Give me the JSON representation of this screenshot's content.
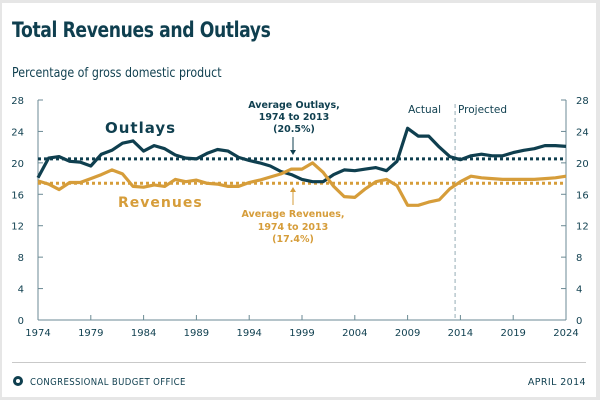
{
  "header": {
    "title": "Total Revenues and Outlays",
    "subtitle": "Percentage of gross domestic product"
  },
  "footer": {
    "agency": "CONGRESSIONAL BUDGET OFFICE",
    "date": "APRIL 2014"
  },
  "colors": {
    "outlays": "#0f3f4f",
    "revenues": "#d69d3a",
    "axis": "#6b8a94",
    "divider": "#b8c8ce"
  },
  "chart_data": {
    "type": "line",
    "title": "Total Revenues and Outlays",
    "subtitle": "Percentage of gross domestic product",
    "xlabel": "",
    "ylabel": "Percentage of gross domestic product",
    "xlim": [
      1974,
      2024
    ],
    "ylim": [
      0,
      28
    ],
    "x_ticks": [
      1974,
      1979,
      1984,
      1989,
      1994,
      1999,
      2004,
      2009,
      2014,
      2019,
      2024
    ],
    "y_ticks": [
      0,
      4,
      8,
      12,
      16,
      20,
      24,
      28
    ],
    "grid": false,
    "x": [
      1974,
      1975,
      1976,
      1977,
      1978,
      1979,
      1980,
      1981,
      1982,
      1983,
      1984,
      1985,
      1986,
      1987,
      1988,
      1989,
      1990,
      1991,
      1992,
      1993,
      1994,
      1995,
      1996,
      1997,
      1998,
      1999,
      2000,
      2001,
      2002,
      2003,
      2004,
      2005,
      2006,
      2007,
      2008,
      2009,
      2010,
      2011,
      2012,
      2013,
      2014,
      2015,
      2016,
      2017,
      2018,
      2019,
      2020,
      2021,
      2022,
      2023,
      2024
    ],
    "series": [
      {
        "name": "Outlays",
        "label": "Outlays",
        "values": [
          18.1,
          20.6,
          20.8,
          20.2,
          20.1,
          19.6,
          21.1,
          21.6,
          22.5,
          22.8,
          21.5,
          22.2,
          21.8,
          21.0,
          20.6,
          20.5,
          21.2,
          21.7,
          21.5,
          20.7,
          20.3,
          20.0,
          19.6,
          18.9,
          18.5,
          17.9,
          17.6,
          17.6,
          18.5,
          19.1,
          19.0,
          19.2,
          19.4,
          19.0,
          20.2,
          24.4,
          23.4,
          23.4,
          22.0,
          20.8,
          20.4,
          20.9,
          21.1,
          20.9,
          20.9,
          21.3,
          21.6,
          21.8,
          22.2,
          22.2,
          22.1
        ]
      },
      {
        "name": "Revenues",
        "label": "Revenues",
        "values": [
          17.7,
          17.3,
          16.6,
          17.5,
          17.5,
          18.0,
          18.5,
          19.1,
          18.6,
          17.0,
          16.9,
          17.2,
          17.0,
          17.9,
          17.6,
          17.8,
          17.4,
          17.3,
          17.0,
          17.0,
          17.5,
          17.8,
          18.2,
          18.6,
          19.2,
          19.2,
          20.0,
          18.8,
          17.0,
          15.7,
          15.6,
          16.7,
          17.6,
          17.9,
          17.1,
          14.6,
          14.6,
          15.0,
          15.3,
          16.7,
          17.6,
          18.3,
          18.1,
          18.0,
          17.9,
          17.9,
          17.9,
          17.9,
          18.0,
          18.1,
          18.3
        ]
      }
    ],
    "reference_lines": [
      {
        "name": "Average Outlays",
        "value": 20.5,
        "label_lines": [
          "Average Outlays,",
          "1974 to 2013",
          "(20.5%)"
        ]
      },
      {
        "name": "Average Revenues",
        "value": 17.4,
        "label_lines": [
          "Average Revenues,",
          "1974 to 2013",
          "(17.4%)"
        ]
      }
    ],
    "annotations": [
      {
        "text": "Actual",
        "position": "left of divider"
      },
      {
        "text": "Projected",
        "position": "right of divider"
      }
    ],
    "divider_x": 2013.5,
    "legend": "inline labels on series"
  }
}
